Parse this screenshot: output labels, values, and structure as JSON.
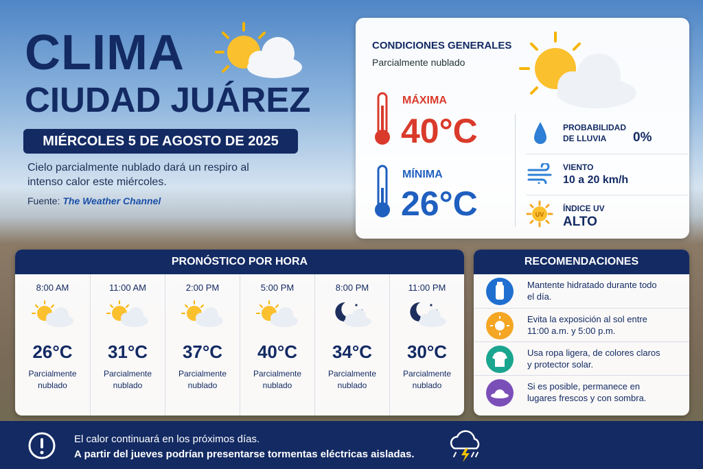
{
  "header": {
    "title_line1": "CLIMA",
    "title_line2": "CIUDAD JUÁREZ",
    "date": "MIÉRCOLES 5 DE AGOSTO DE 2025",
    "summary": "Cielo parcialmente nublado dará un respiro al intenso calor este miércoles.",
    "source_label": "Fuente:",
    "source": "The Weather Channel"
  },
  "conditions": {
    "title": "CONDICIONES GENERALES",
    "subtitle": "Parcialmente nublado",
    "max_label": "MÁXIMA",
    "max": "40°C",
    "min_label": "MÍNIMA",
    "min": "26°C",
    "rain_label": "PROBABILIDAD DE LLUVIA",
    "rain": "0%",
    "wind_label": "VIENTO",
    "wind": "10 a 20 km/h",
    "uv_icon": "UV",
    "uv_label": "ÍNDICE UV",
    "uv": "ALTO"
  },
  "hourly": {
    "title": "PRONÓSTICO POR HORA",
    "items": [
      {
        "time": "8:00 AM",
        "icon": "sun-cloud",
        "temp": "26°C",
        "condition": "Parcialmente nublado"
      },
      {
        "time": "11:00 AM",
        "icon": "sun-cloud",
        "temp": "31°C",
        "condition": "Parcialmente nublado"
      },
      {
        "time": "2:00 PM",
        "icon": "sun-cloud",
        "temp": "37°C",
        "condition": "Parcialmente nublado"
      },
      {
        "time": "5:00 PM",
        "icon": "sun-cloud",
        "temp": "40°C",
        "condition": "Parcialmente nublado"
      },
      {
        "time": "8:00 PM",
        "icon": "moon-cloud",
        "temp": "34°C",
        "condition": "Parcialmente nublado"
      },
      {
        "time": "11:00 PM",
        "icon": "moon-cloud",
        "temp": "30°C",
        "condition": "Parcialmente nublado"
      }
    ]
  },
  "recommendations": {
    "title": "RECOMENDACIONES",
    "items": [
      "Mantente hidratado durante todo el día.",
      "Evita la exposición al sol entre 11:00 a.m. y 5:00 p.m.",
      "Usa ropa ligera, de colores claros y protector solar.",
      "Si es posible, permanece en lugares frescos y con sombra."
    ]
  },
  "footer": {
    "line1": "El calor continuará en los próximos días.",
    "line2": "A partir del jueves podrían presentarse tormentas eléctricas aisladas."
  }
}
